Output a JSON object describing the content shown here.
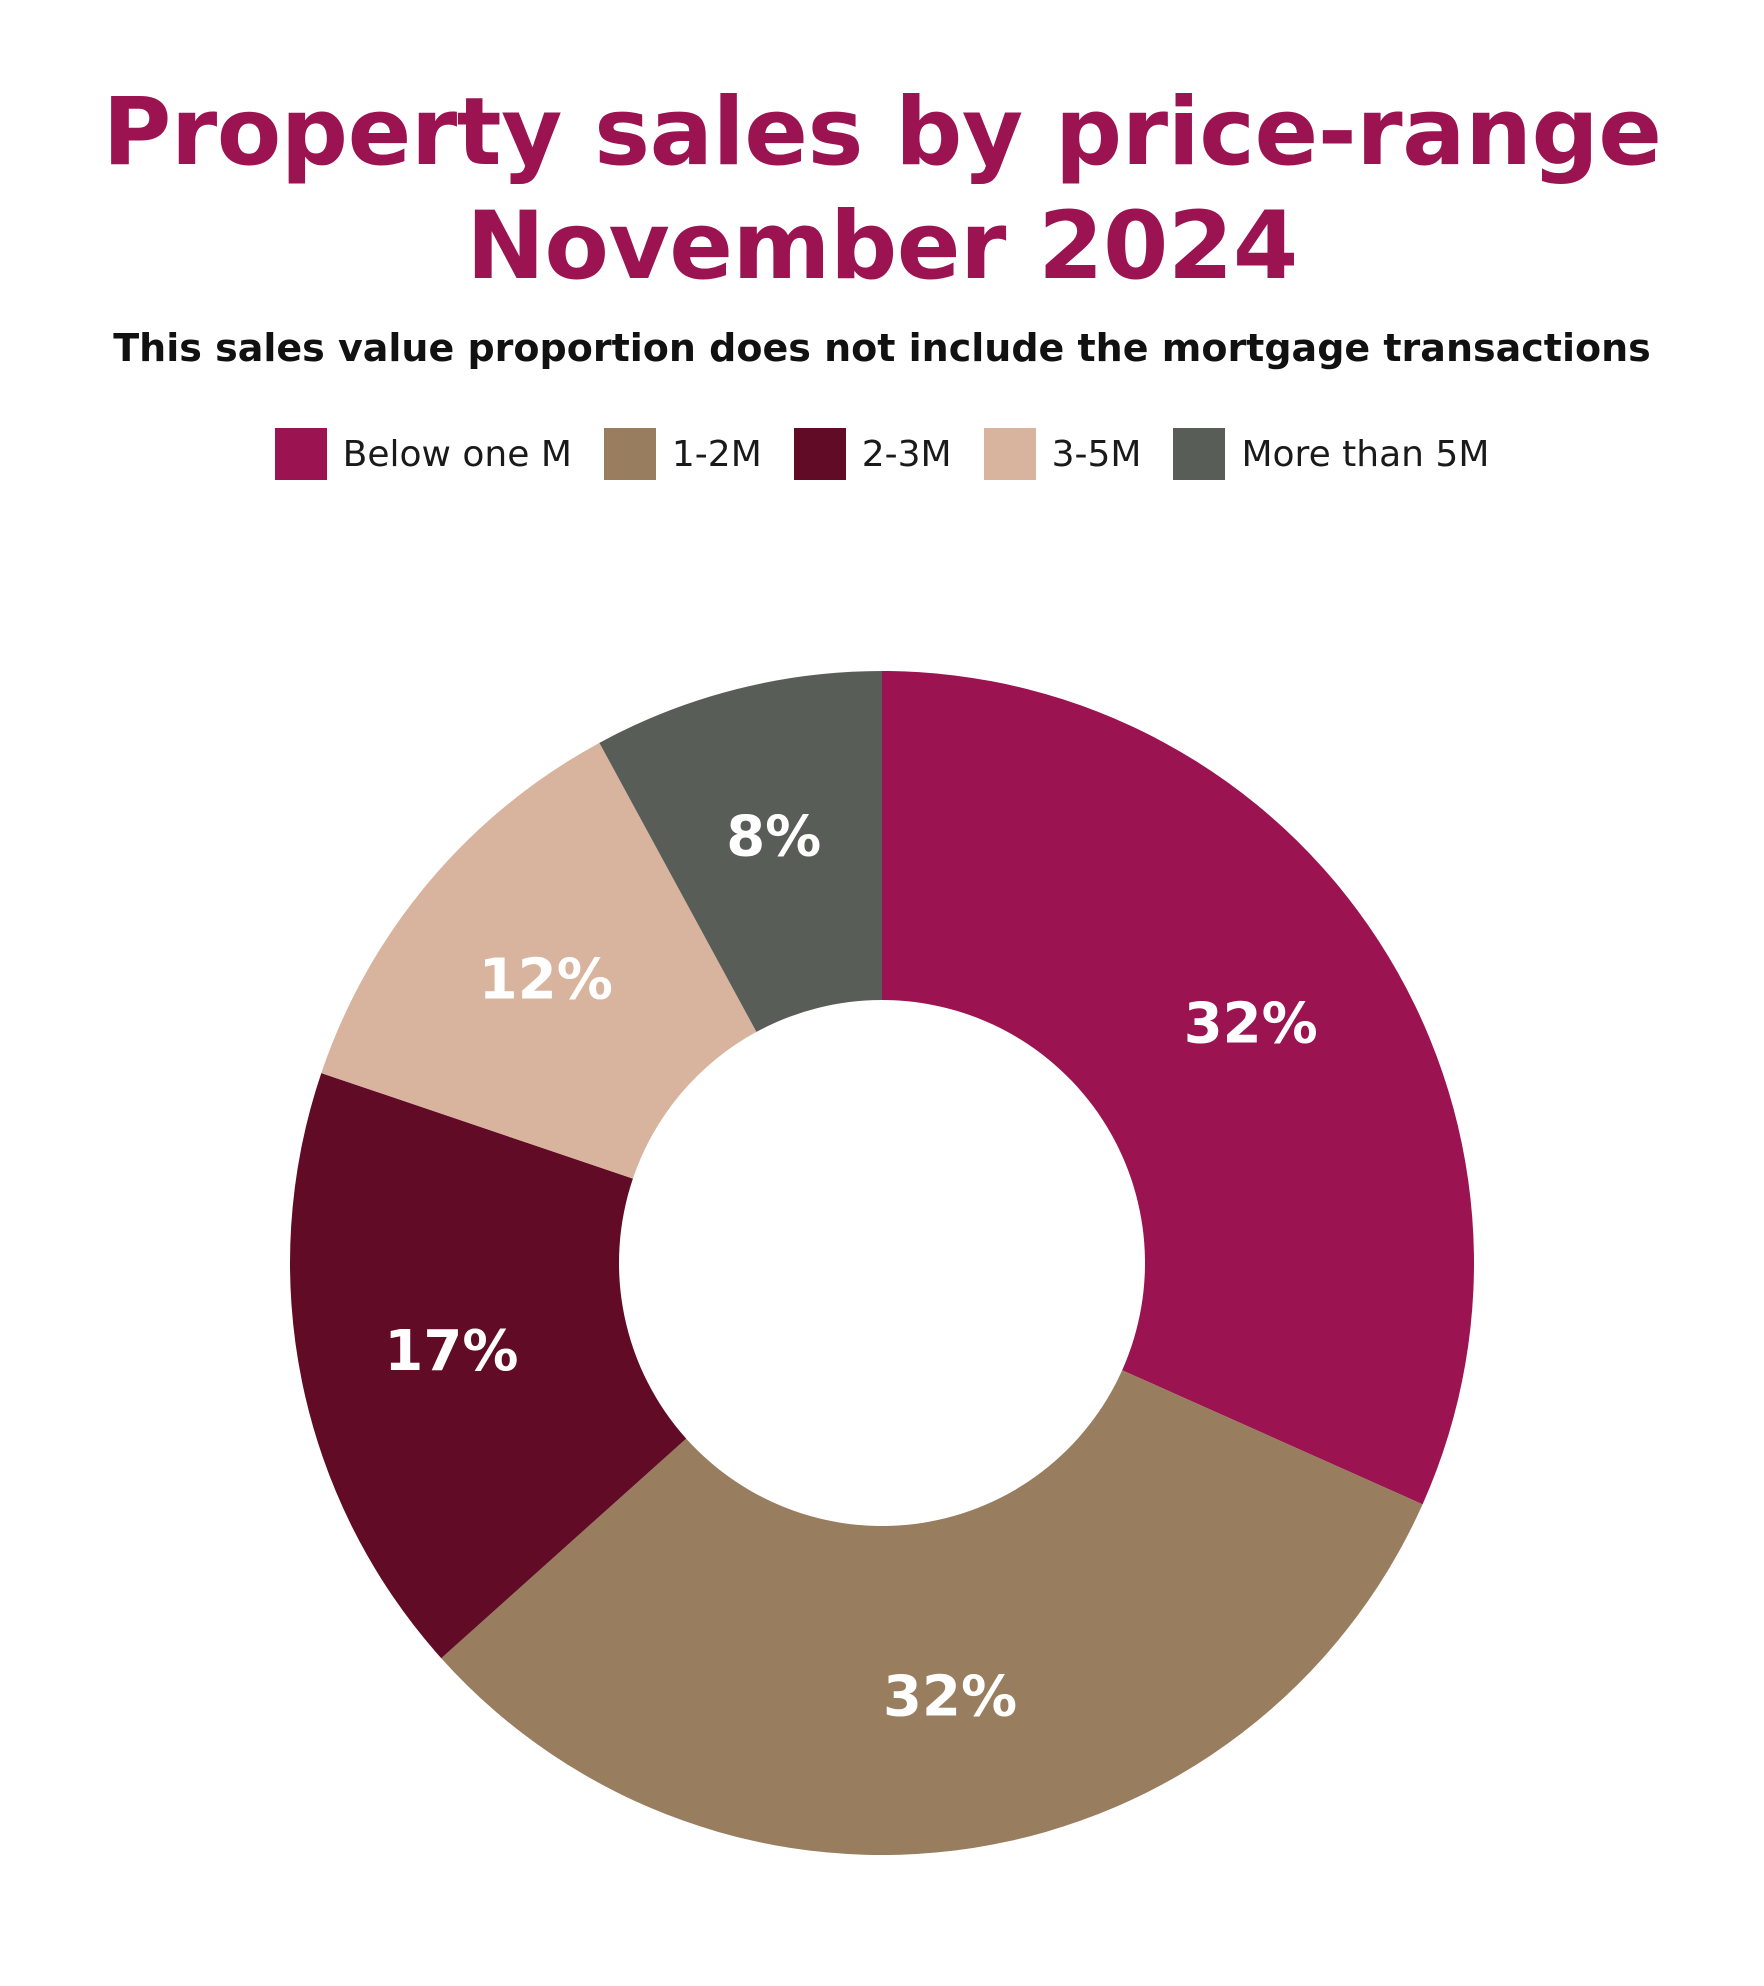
{
  "chart_data": {
    "type": "pie",
    "donut": true,
    "title_lines": [
      "Property sales by price-range",
      "November 2024"
    ],
    "subtitle": "This sales value proportion does not include the mortgage transactions",
    "legend_position": "top",
    "categories": [
      "Below one M",
      "1-2M",
      "2-3M",
      "3-5M",
      "More than 5M"
    ],
    "values": [
      32,
      32,
      17,
      12,
      8
    ],
    "data_labels": [
      "32%",
      "32%",
      "17%",
      "12%",
      "8%"
    ],
    "colors": [
      "#9b1451",
      "#987d5e",
      "#620b27",
      "#d8b39d",
      "#595d57"
    ]
  }
}
